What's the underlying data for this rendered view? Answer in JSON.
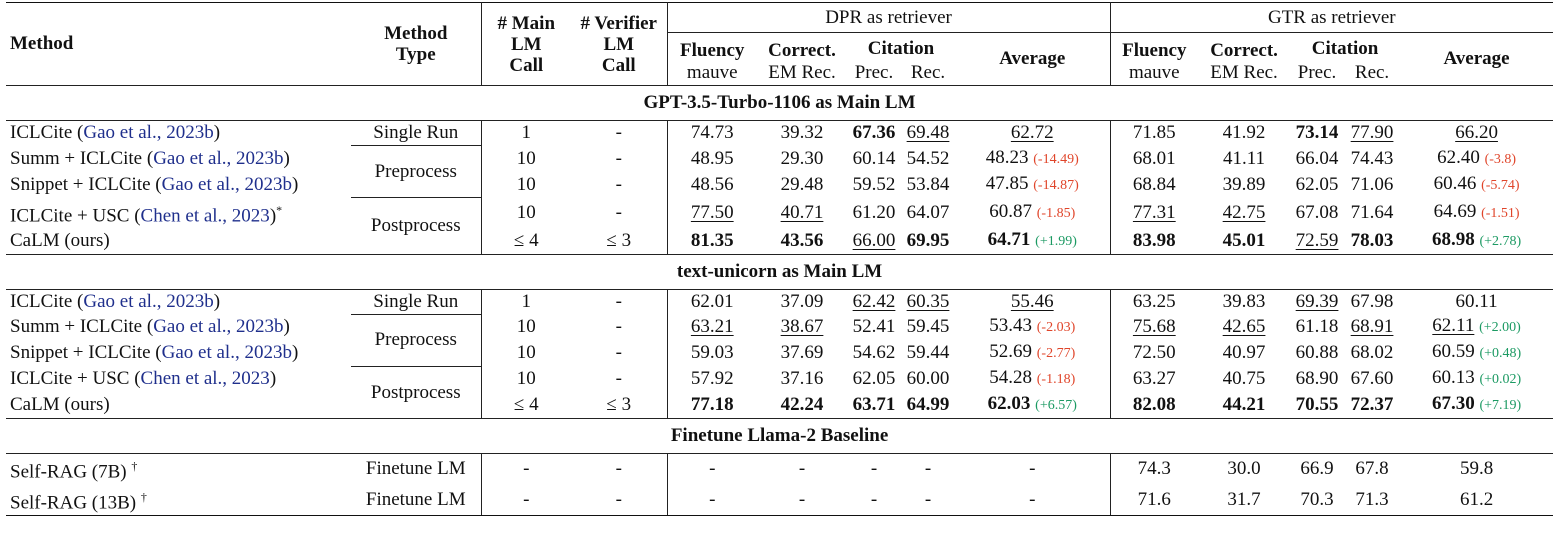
{
  "headers": {
    "method": "Method",
    "method_type_1": "Method",
    "method_type_2": "Type",
    "main_call_1": "# Main",
    "main_call_2": "LM",
    "main_call_3": "Call",
    "verifier_call_1": "# Verifier",
    "verifier_call_2": "LM",
    "verifier_call_3": "Call",
    "dpr_group": "DPR as retriever",
    "gtr_group": "GTR as retriever",
    "fluency": "Fluency",
    "fluency_sub": "mauve",
    "correct": "Correct.",
    "correct_sub": "EM Rec.",
    "citation": "Citation",
    "prec": "Prec.",
    "rec": "Rec.",
    "average": "Average"
  },
  "sections": [
    {
      "title": "GPT-3.5-Turbo-1106 as Main LM",
      "rows": [
        {
          "name": "ICLCite (",
          "cite": "Gao et al., 2023b",
          "name_end": ")",
          "sup": "",
          "type": "Single Run",
          "main": "1",
          "ver": "-",
          "dpr": [
            {
              "v": "74.73"
            },
            {
              "v": "39.32"
            },
            {
              "v": "67.36",
              "b": 1
            },
            {
              "v": "69.48",
              "u": 1
            },
            {
              "v": "62.72",
              "u": 1
            }
          ],
          "gtr": [
            {
              "v": "71.85"
            },
            {
              "v": "41.92"
            },
            {
              "v": "73.14",
              "b": 1
            },
            {
              "v": "77.90",
              "u": 1
            },
            {
              "v": "66.20",
              "u": 1
            }
          ]
        },
        {
          "name": "Summ + ICLCite (",
          "cite": "Gao et al., 2023b",
          "name_end": ")",
          "sup": "",
          "type": "Preprocess",
          "main": "10",
          "ver": "-",
          "dpr": [
            {
              "v": "48.95"
            },
            {
              "v": "29.30"
            },
            {
              "v": "60.14"
            },
            {
              "v": "54.52"
            },
            {
              "v": "48.23",
              "d": "(-14.49)",
              "dc": "neg"
            }
          ],
          "gtr": [
            {
              "v": "68.01"
            },
            {
              "v": "41.11"
            },
            {
              "v": "66.04"
            },
            {
              "v": "74.43"
            },
            {
              "v": "62.40",
              "d": "(-3.8)",
              "dc": "neg"
            }
          ]
        },
        {
          "name": "Snippet + ICLCite (",
          "cite": "Gao et al., 2023b",
          "name_end": ")",
          "sup": "",
          "type": "",
          "main": "10",
          "ver": "-",
          "dpr": [
            {
              "v": "48.56"
            },
            {
              "v": "29.48"
            },
            {
              "v": "59.52"
            },
            {
              "v": "53.84"
            },
            {
              "v": "47.85",
              "d": "(-14.87)",
              "dc": "neg"
            }
          ],
          "gtr": [
            {
              "v": "68.84"
            },
            {
              "v": "39.89"
            },
            {
              "v": "62.05"
            },
            {
              "v": "71.06"
            },
            {
              "v": "60.46",
              "d": "(-5.74)",
              "dc": "neg"
            }
          ]
        },
        {
          "name": "ICLCite + USC (",
          "cite": "Chen et al., 2023",
          "name_end": ")",
          "sup": "*",
          "type": "Postprocess",
          "main": "10",
          "ver": "-",
          "dpr": [
            {
              "v": "77.50",
              "u": 1
            },
            {
              "v": "40.71",
              "u": 1
            },
            {
              "v": "61.20"
            },
            {
              "v": "64.07"
            },
            {
              "v": "60.87",
              "d": "(-1.85)",
              "dc": "neg"
            }
          ],
          "gtr": [
            {
              "v": "77.31",
              "u": 1
            },
            {
              "v": "42.75",
              "u": 1
            },
            {
              "v": "67.08"
            },
            {
              "v": "71.64"
            },
            {
              "v": "64.69",
              "d": "(-1.51)",
              "dc": "neg"
            }
          ]
        },
        {
          "name": "CaLM (ours)",
          "cite": "",
          "name_end": "",
          "sup": "",
          "type": "",
          "main": "≤ 4",
          "ver": "≤ 3",
          "dpr": [
            {
              "v": "81.35",
              "b": 1
            },
            {
              "v": "43.56",
              "b": 1
            },
            {
              "v": "66.00",
              "u": 1
            },
            {
              "v": "69.95",
              "b": 1
            },
            {
              "v": "64.71",
              "b": 1,
              "d": "(+1.99)",
              "dc": "pos"
            }
          ],
          "gtr": [
            {
              "v": "83.98",
              "b": 1
            },
            {
              "v": "45.01",
              "b": 1
            },
            {
              "v": "72.59",
              "u": 1
            },
            {
              "v": "78.03",
              "b": 1
            },
            {
              "v": "68.98",
              "b": 1,
              "d": "(+2.78)",
              "dc": "pos"
            }
          ]
        }
      ]
    },
    {
      "title": "text-unicorn as Main LM",
      "rows": [
        {
          "name": "ICLCite (",
          "cite": "Gao et al., 2023b",
          "name_end": ")",
          "sup": "",
          "type": "Single Run",
          "main": "1",
          "ver": "-",
          "dpr": [
            {
              "v": "62.01"
            },
            {
              "v": "37.09"
            },
            {
              "v": "62.42",
              "u": 1
            },
            {
              "v": "60.35",
              "u": 1
            },
            {
              "v": "55.46",
              "u": 1
            }
          ],
          "gtr": [
            {
              "v": "63.25"
            },
            {
              "v": "39.83"
            },
            {
              "v": "69.39",
              "u": 1
            },
            {
              "v": "67.98"
            },
            {
              "v": "60.11"
            }
          ]
        },
        {
          "name": "Summ + ICLCite (",
          "cite": "Gao et al., 2023b",
          "name_end": ")",
          "sup": "",
          "type": "Preprocess",
          "main": "10",
          "ver": "-",
          "dpr": [
            {
              "v": "63.21",
              "u": 1
            },
            {
              "v": "38.67",
              "u": 1
            },
            {
              "v": "52.41"
            },
            {
              "v": "59.45"
            },
            {
              "v": "53.43",
              "d": "(-2.03)",
              "dc": "neg"
            }
          ],
          "gtr": [
            {
              "v": "75.68",
              "u": 1
            },
            {
              "v": "42.65",
              "u": 1
            },
            {
              "v": "61.18"
            },
            {
              "v": "68.91",
              "u": 1
            },
            {
              "v": "62.11",
              "u": 1,
              "d": "(+2.00)",
              "dc": "pos"
            }
          ]
        },
        {
          "name": "Snippet + ICLCite (",
          "cite": "Gao et al., 2023b",
          "name_end": ")",
          "sup": "",
          "type": "",
          "main": "10",
          "ver": "-",
          "dpr": [
            {
              "v": "59.03"
            },
            {
              "v": "37.69"
            },
            {
              "v": "54.62"
            },
            {
              "v": "59.44"
            },
            {
              "v": "52.69",
              "d": "(-2.77)",
              "dc": "neg"
            }
          ],
          "gtr": [
            {
              "v": "72.50"
            },
            {
              "v": "40.97"
            },
            {
              "v": "60.88"
            },
            {
              "v": "68.02"
            },
            {
              "v": "60.59",
              "d": "(+0.48)",
              "dc": "pos"
            }
          ]
        },
        {
          "name": "ICLCite + USC (",
          "cite": "Chen et al., 2023",
          "name_end": ")",
          "sup": "",
          "type": "Postprocess",
          "main": "10",
          "ver": "-",
          "dpr": [
            {
              "v": "57.92"
            },
            {
              "v": "37.16"
            },
            {
              "v": "62.05"
            },
            {
              "v": "60.00"
            },
            {
              "v": "54.28",
              "d": "(-1.18)",
              "dc": "neg"
            }
          ],
          "gtr": [
            {
              "v": "63.27"
            },
            {
              "v": "40.75"
            },
            {
              "v": "68.90"
            },
            {
              "v": "67.60"
            },
            {
              "v": "60.13",
              "d": "(+0.02)",
              "dc": "pos"
            }
          ]
        },
        {
          "name": "CaLM (ours)",
          "cite": "",
          "name_end": "",
          "sup": "",
          "type": "",
          "main": "≤ 4",
          "ver": "≤ 3",
          "dpr": [
            {
              "v": "77.18",
              "b": 1
            },
            {
              "v": "42.24",
              "b": 1
            },
            {
              "v": "63.71",
              "b": 1
            },
            {
              "v": "64.99",
              "b": 1
            },
            {
              "v": "62.03",
              "b": 1,
              "d": "(+6.57)",
              "dc": "pos"
            }
          ],
          "gtr": [
            {
              "v": "82.08",
              "b": 1
            },
            {
              "v": "44.21",
              "b": 1
            },
            {
              "v": "70.55",
              "b": 1
            },
            {
              "v": "72.37",
              "b": 1
            },
            {
              "v": "67.30",
              "b": 1,
              "d": "(+7.19)",
              "dc": "pos"
            }
          ]
        }
      ]
    },
    {
      "title": "Finetune Llama-2 Baseline",
      "rows": [
        {
          "name": "Self-RAG (7B) ",
          "cite": "",
          "name_end": "",
          "sup": "†",
          "type": "Finetune LM",
          "main": "-",
          "ver": "-",
          "dpr": [
            {
              "v": "-"
            },
            {
              "v": "-"
            },
            {
              "v": "-"
            },
            {
              "v": "-"
            },
            {
              "v": "-"
            }
          ],
          "gtr": [
            {
              "v": "74.3"
            },
            {
              "v": "30.0"
            },
            {
              "v": "66.9"
            },
            {
              "v": "67.8"
            },
            {
              "v": "59.8"
            }
          ]
        },
        {
          "name": "Self-RAG (13B) ",
          "cite": "",
          "name_end": "",
          "sup": "†",
          "type": "Finetune LM",
          "main": "-",
          "ver": "-",
          "dpr": [
            {
              "v": "-"
            },
            {
              "v": "-"
            },
            {
              "v": "-"
            },
            {
              "v": "-"
            },
            {
              "v": "-"
            }
          ],
          "gtr": [
            {
              "v": "71.6"
            },
            {
              "v": "31.7"
            },
            {
              "v": "70.3"
            },
            {
              "v": "71.3"
            },
            {
              "v": "61.2"
            }
          ]
        }
      ]
    }
  ]
}
